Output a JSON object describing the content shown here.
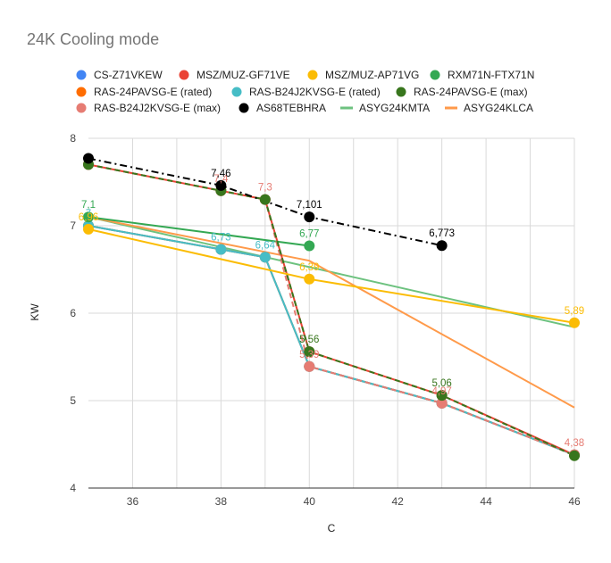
{
  "chart_data": {
    "type": "line",
    "title": "24K Cooling mode",
    "xlabel": "C",
    "ylabel": "KW",
    "xlim": [
      35,
      46
    ],
    "ylim": [
      4,
      8
    ],
    "x_ticks": [
      36,
      38,
      40,
      42,
      44,
      46
    ],
    "y_ticks": [
      4,
      5,
      6,
      7,
      8
    ],
    "grid": true,
    "legend_position": "top",
    "series": [
      {
        "name": "CS-Z71VKEW",
        "color": "#4285F4",
        "style": "solid",
        "marker": true,
        "points": [
          [
            35,
            7.0
          ],
          [
            38,
            6.73
          ],
          [
            39,
            6.64
          ],
          [
            40,
            5.39
          ],
          [
            43,
            4.97
          ],
          [
            46,
            4.38
          ]
        ]
      },
      {
        "name": "MSZ/MUZ-GF71VE",
        "color": "#EA4335",
        "style": "solid",
        "marker": true,
        "points": [
          [
            35,
            7.7
          ],
          [
            38,
            7.4
          ],
          [
            39,
            7.3
          ],
          [
            40,
            5.56
          ],
          [
            43,
            5.06
          ],
          [
            46,
            4.38
          ]
        ]
      },
      {
        "name": "MSZ/MUZ-AP71VG",
        "color": "#FBBC04",
        "style": "solid",
        "marker": true,
        "points": [
          [
            35,
            6.96
          ],
          [
            40,
            6.39
          ],
          [
            46,
            5.89
          ]
        ],
        "labels": [
          "6,96",
          "6,39",
          "5,89"
        ]
      },
      {
        "name": "RXM71N-FTX71N",
        "color": "#34A853",
        "style": "solid",
        "marker": true,
        "points": [
          [
            35,
            7.1
          ],
          [
            40,
            6.77
          ]
        ],
        "labels": [
          "7,1",
          "6,77"
        ]
      },
      {
        "name": "RAS-24PAVSG-E (rated)",
        "color": "#FF6D01",
        "style": "solid",
        "marker": true,
        "points": [
          [
            35,
            7.0
          ],
          [
            38,
            6.73
          ],
          [
            39,
            6.64
          ],
          [
            40,
            5.39
          ],
          [
            43,
            4.97
          ],
          [
            46,
            4.38
          ]
        ]
      },
      {
        "name": "RAS-B24J2KVSG-E (rated)",
        "color": "#46BDC6",
        "style": "solid",
        "marker": true,
        "points": [
          [
            35,
            7.0
          ],
          [
            38,
            6.73
          ],
          [
            39,
            6.64
          ],
          [
            40,
            5.39
          ],
          [
            43,
            4.97
          ],
          [
            46,
            4.38
          ]
        ],
        "labels": [
          "7",
          "6,73",
          "6,64",
          "",
          "",
          ""
        ]
      },
      {
        "name": "RAS-24PAVSG-E (max)",
        "color": "#38761D",
        "style": "dashed",
        "marker": true,
        "points": [
          [
            35,
            7.7
          ],
          [
            38,
            7.4
          ],
          [
            39,
            7.3
          ],
          [
            40,
            5.56
          ],
          [
            43,
            5.06
          ],
          [
            46,
            4.37
          ]
        ],
        "labels": [
          "",
          "",
          "",
          "5,56",
          "5,06",
          ""
        ]
      },
      {
        "name": "RAS-B24J2KVSG-E (max)",
        "color": "#E67C73",
        "style": "dashed",
        "marker": true,
        "points": [
          [
            35,
            7.7
          ],
          [
            38,
            7.4
          ],
          [
            39,
            7.3
          ],
          [
            40,
            5.39
          ],
          [
            43,
            4.97
          ],
          [
            46,
            4.38
          ]
        ],
        "labels": [
          "",
          "7,4",
          "7,3",
          "5,39",
          "4,97",
          "4,38"
        ]
      },
      {
        "name": "AS68TEBHRA",
        "color": "#000000",
        "style": "dashdot",
        "marker": true,
        "points": [
          [
            35,
            7.77
          ],
          [
            38,
            7.46
          ],
          [
            40,
            7.101
          ],
          [
            43,
            6.773
          ]
        ],
        "labels": [
          "",
          "7,46",
          "7,101",
          "6,773"
        ]
      },
      {
        "name": "ASYG24KMTA",
        "color": "#6DC27F",
        "style": "solid",
        "marker": false,
        "points": [
          [
            35,
            7.1
          ],
          [
            46,
            5.84
          ]
        ]
      },
      {
        "name": "ASYG24KLCA",
        "color": "#FF9A4A",
        "style": "solid",
        "marker": false,
        "points": [
          [
            35,
            7.1
          ],
          [
            40,
            6.6
          ],
          [
            46,
            4.92
          ]
        ]
      }
    ]
  }
}
